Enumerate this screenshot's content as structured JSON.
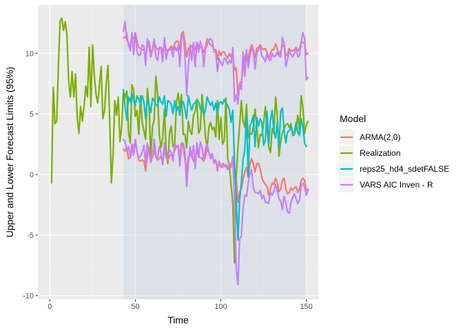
{
  "chart_data": {
    "type": "line",
    "title": "",
    "xlabel": "Time",
    "ylabel": "Upper and Lower Forecast Limits (95%)",
    "xlim": [
      -7,
      157
    ],
    "ylim": [
      -10.3,
      14.0
    ],
    "xticks": [
      0,
      50,
      100,
      150
    ],
    "yticks": [
      -10,
      -5,
      0,
      5,
      10
    ],
    "grid": true,
    "panel_background": "#ebebeb",
    "forecast_region": {
      "x_start": 43,
      "x_end": 150,
      "color": "#bfd2e1"
    },
    "legend": {
      "title": "Model",
      "position": "right",
      "entries": [
        {
          "label": "ARMA(2,0)",
          "color": "#f8766d"
        },
        {
          "label": "Realization",
          "color": "#7cae00"
        },
        {
          "label": "reps25_hd4_sdetFALSE",
          "color": "#00bfc4"
        },
        {
          "label": "VARS AIC Inven - R",
          "color": "#c77cff"
        }
      ]
    },
    "series": [
      {
        "name": "Realization",
        "color": "#7cae00",
        "x": [
          1,
          2,
          3,
          4,
          5,
          6,
          7,
          8,
          9,
          10,
          11,
          12,
          13,
          14,
          15,
          16,
          17,
          18,
          19,
          20,
          21,
          22,
          23,
          24,
          25,
          26,
          27,
          28,
          29,
          30,
          31,
          32,
          33,
          34,
          35,
          36,
          37,
          38,
          39,
          40,
          41,
          42,
          43,
          44,
          45,
          46,
          47,
          48,
          49,
          50,
          51,
          52,
          53,
          54,
          55,
          56,
          57,
          58,
          59,
          60,
          61,
          62,
          63,
          64,
          65,
          66,
          67,
          68,
          69,
          70,
          71,
          72,
          73,
          74,
          75,
          76,
          77,
          78,
          79,
          80,
          81,
          82,
          83,
          84,
          85,
          86,
          87,
          88,
          89,
          90,
          91,
          92,
          93,
          94,
          95,
          96,
          97,
          98,
          99,
          100,
          101,
          102,
          103,
          104,
          105,
          106,
          107,
          108,
          109,
          110,
          111,
          112,
          113,
          114,
          115,
          116,
          117,
          118,
          119,
          120,
          121,
          122,
          123,
          124,
          125,
          126,
          127,
          128,
          129,
          130,
          131,
          132,
          133,
          134,
          135,
          136,
          137,
          138,
          139,
          140,
          141,
          142,
          143,
          144,
          145,
          146,
          147,
          148,
          149,
          150,
          151
        ],
        "y": [
          -0.7,
          7.2,
          4.2,
          4.4,
          9.0,
          12.7,
          12.9,
          11.9,
          12.6,
          11.5,
          7.7,
          6.4,
          8.5,
          6.4,
          8.3,
          4.7,
          3.4,
          5.6,
          4.4,
          5.6,
          7.3,
          6.4,
          10.5,
          5.6,
          10.7,
          8.2,
          6.6,
          5.9,
          7.4,
          8.9,
          4.6,
          5.3,
          7.6,
          9.0,
          4.4,
          -0.7,
          1.7,
          6.1,
          4.9,
          6.4,
          2.7,
          3.9,
          6.9,
          6.3,
          6.9,
          3.5,
          2.6,
          7.4,
          7.0,
          4.8,
          5.3,
          3.3,
          6.5,
          4.3,
          3.6,
          2.9,
          7.1,
          5.8,
          1.5,
          3.9,
          4.5,
          8.1,
          6.6,
          3.3,
          2.2,
          3.0,
          5.4,
          2.0,
          0.9,
          3.4,
          4.0,
          2.3,
          2.5,
          5.8,
          6.7,
          5.5,
          6.6,
          3.3,
          3.3,
          2.2,
          4.4,
          3.6,
          3.3,
          4.9,
          5.2,
          6.1,
          3.4,
          3.7,
          6.6,
          5.1,
          3.1,
          2.2,
          3.9,
          4.3,
          3.7,
          3.9,
          3.1,
          6.1,
          2.9,
          4.7,
          2.5,
          2.8,
          6.3,
          1.3,
          0.7,
          -0.9,
          -2.4,
          -7.3,
          -0.2,
          2.2,
          4.1,
          6.1,
          4.4,
          3.9,
          5.8,
          3.0,
          3.4,
          3.3,
          3.9,
          5.4,
          4.0,
          2.2,
          3.3,
          3.2,
          4.2,
          5.6,
          3.9,
          2.3,
          1.8,
          3.8,
          3.4,
          6.4,
          4.9,
          1.5,
          2.7,
          3.5,
          3.8,
          4.1,
          4.2,
          3.9,
          4.2,
          3.2,
          3.3,
          3.8,
          4.9,
          3.6,
          6.5,
          5.5,
          3.4,
          4.1,
          4.4
        ]
      },
      {
        "name": "ARMA(2,0)",
        "color": "#f8766d",
        "x": [
          43,
          44,
          45,
          46,
          47,
          48,
          49,
          50,
          51,
          52,
          53,
          54,
          55,
          56,
          57,
          58,
          59,
          60,
          61,
          62,
          63,
          64,
          65,
          66,
          67,
          68,
          69,
          70,
          71,
          72,
          73,
          74,
          75,
          76,
          77,
          78,
          79,
          80,
          81,
          82,
          83,
          84,
          85,
          86,
          87,
          88,
          89,
          90,
          91,
          92,
          93,
          94,
          95,
          96,
          97,
          98,
          99,
          100,
          101,
          102,
          103,
          104,
          105,
          106,
          107,
          108,
          109,
          110,
          111,
          112,
          113,
          114,
          115,
          116,
          117,
          118,
          119,
          120,
          121,
          122,
          123,
          124,
          125,
          126,
          127,
          128,
          129,
          130,
          131,
          132,
          133,
          134,
          135,
          136,
          137,
          138,
          139,
          140,
          141,
          142,
          143,
          144,
          145,
          146,
          147,
          148,
          149,
          150,
          151
        ],
        "y_upper": [
          11.3,
          11.3,
          11.6,
          10.6,
          10.6,
          11.2,
          11.2,
          11.7,
          11.0,
          10.5,
          10.4,
          10.3,
          10.3,
          9.3,
          10.7,
          11.0,
          10.1,
          10.3,
          10.9,
          10.5,
          10.3,
          10.4,
          10.5,
          10.1,
          10.9,
          10.3,
          10.2,
          10.4,
          10.6,
          10.3,
          10.8,
          11.0,
          11.0,
          10.3,
          11.6,
          11.8,
          10.9,
          9.7,
          10.4,
          10.5,
          10.6,
          10.2,
          10.3,
          10.9,
          10.6,
          10.5,
          10.4,
          10.1,
          10.5,
          11.2,
          10.9,
          10.7,
          10.6,
          10.3,
          10.3,
          9.5,
          10.2,
          9.8,
          10.1,
          10.1,
          9.8,
          9.6,
          10.0,
          9.7,
          10.1,
          8.6,
          8.8,
          6.6,
          7.5,
          7.7,
          8.8,
          9.6,
          10.1,
          9.4,
          10.3,
          10.7,
          10.3,
          9.6,
          10.4,
          10.5,
          10.7,
          10.4,
          10.3,
          10.4,
          10.1,
          9.6,
          10.0,
          10.3,
          10.3,
          10.8,
          10.4,
          9.9,
          10.1,
          10.6,
          10.7,
          9.8,
          9.9,
          10.4,
          10.2,
          10.2,
          10.3,
          10.5,
          10.2,
          10.4,
          10.9,
          10.9,
          10.8,
          9.9,
          10.0
        ],
        "y_lower": [
          2.1,
          1.9,
          2.2,
          1.3,
          1.4,
          2.0,
          2.4,
          2.6,
          1.9,
          1.2,
          1.1,
          1.2,
          1.1,
          0.3,
          1.6,
          2.2,
          1.3,
          1.4,
          2.0,
          1.5,
          1.2,
          1.3,
          1.5,
          0.9,
          2.0,
          1.4,
          1.2,
          1.5,
          1.7,
          1.5,
          2.0,
          2.3,
          2.2,
          1.5,
          2.6,
          2.4,
          1.2,
          0.3,
          1.5,
          1.6,
          1.6,
          1.1,
          1.3,
          1.9,
          1.5,
          1.4,
          1.3,
          1.1,
          1.5,
          2.1,
          1.8,
          1.6,
          1.4,
          1.1,
          1.2,
          0.3,
          1.1,
          0.6,
          0.9,
          0.8,
          0.6,
          0.5,
          0.9,
          0.6,
          1.1,
          -0.3,
          -0.3,
          -2.3,
          -1.4,
          -1.2,
          -0.4,
          0.2,
          0.6,
          -0.2,
          0.8,
          1.3,
          0.9,
          0.2,
          0.9,
          0.9,
          0.5,
          -0.3,
          -0.6,
          -0.8,
          -1.0,
          -1.7,
          -1.2,
          -0.7,
          -0.8,
          -0.3,
          -0.7,
          -1.4,
          -1.2,
          -0.5,
          -0.3,
          -1.2,
          -1.6,
          -1.5,
          -1.1,
          -1.3,
          -1.1,
          -1.0,
          -1.5,
          -1.2,
          -0.5,
          -0.3,
          -0.5,
          -1.3,
          -1.2
        ]
      },
      {
        "name": "VARS AIC Inven - R",
        "color": "#c77cff",
        "x": [
          43,
          44,
          45,
          46,
          47,
          48,
          49,
          50,
          51,
          52,
          53,
          54,
          55,
          56,
          57,
          58,
          59,
          60,
          61,
          62,
          63,
          64,
          65,
          66,
          67,
          68,
          69,
          70,
          71,
          72,
          73,
          74,
          75,
          76,
          77,
          78,
          79,
          80,
          81,
          82,
          83,
          84,
          85,
          86,
          87,
          88,
          89,
          90,
          91,
          92,
          93,
          94,
          95,
          96,
          97,
          98,
          99,
          100,
          101,
          102,
          103,
          104,
          105,
          106,
          107,
          108,
          109,
          110,
          111,
          112,
          113,
          114,
          115,
          116,
          117,
          118,
          119,
          120,
          121,
          122,
          123,
          124,
          125,
          126,
          127,
          128,
          129,
          130,
          131,
          132,
          133,
          134,
          135,
          136,
          137,
          138,
          139,
          140,
          141,
          142,
          143,
          144,
          145,
          146,
          147,
          148,
          149,
          150,
          151
        ],
        "y_upper": [
          11.8,
          12.6,
          11.1,
          10.9,
          10.2,
          11.7,
          9.9,
          11.7,
          10.1,
          9.8,
          9.9,
          10.7,
          10.6,
          9.0,
          11.2,
          10.6,
          9.7,
          10.2,
          11.2,
          9.7,
          9.4,
          10.5,
          10.4,
          9.3,
          11.3,
          9.5,
          10.2,
          10.3,
          10.4,
          9.7,
          10.6,
          10.2,
          10.6,
          8.9,
          11.3,
          11.5,
          9.9,
          6.5,
          8.9,
          10.7,
          9.4,
          10.9,
          8.9,
          10.9,
          10.1,
          11.0,
          10.5,
          8.9,
          10.4,
          10.7,
          11.1,
          11.2,
          11.0,
          10.1,
          10.1,
          8.5,
          9.6,
          9.2,
          9.0,
          9.6,
          9.5,
          9.1,
          9.4,
          9.2,
          10.5,
          6.0,
          6.6,
          5.8,
          7.5,
          7.0,
          10.1,
          8.1,
          10.3,
          8.8,
          9.8,
          10.5,
          10.1,
          8.7,
          10.0,
          10.3,
          10.5,
          9.8,
          9.6,
          9.3,
          10.0,
          9.5,
          9.4,
          10.0,
          9.7,
          9.8,
          10.1,
          9.8,
          9.7,
          11.3,
          10.8,
          8.9,
          9.5,
          10.2,
          9.9,
          9.7,
          10.0,
          10.4,
          9.7,
          9.8,
          11.0,
          11.7,
          11.2,
          7.8,
          8.0
        ],
        "y_lower": [
          2.9,
          2.7,
          2.0,
          2.3,
          1.5,
          2.5,
          1.6,
          2.9,
          1.9,
          1.4,
          1.5,
          1.8,
          2.4,
          0.9,
          2.6,
          1.8,
          1.0,
          1.5,
          2.9,
          1.5,
          1.4,
          2.3,
          1.8,
          0.8,
          2.6,
          1.4,
          1.5,
          2.0,
          1.8,
          1.1,
          2.5,
          2.3,
          2.4,
          0.7,
          2.3,
          2.6,
          1.9,
          -1.0,
          0.9,
          2.3,
          1.4,
          2.4,
          0.5,
          2.6,
          1.4,
          2.7,
          2.2,
          1.2,
          2.1,
          2.5,
          1.8,
          1.3,
          1.7,
          0.9,
          1.2,
          0.5,
          1.0,
          0.7,
          0.6,
          0.8,
          0.8,
          0.4,
          0.7,
          0.7,
          1.5,
          -2.5,
          -7.8,
          -9.1,
          -5.3,
          -5.1,
          -2.8,
          -1.7,
          -1.8,
          -0.7,
          0.1,
          0.4,
          -1.1,
          -1.5,
          -1.5,
          -1.6,
          -1.3,
          -2.0,
          -1.7,
          -2.3,
          -2.3,
          -2.4,
          -1.5,
          -1.7,
          -1.4,
          -0.8,
          -1.3,
          -2.0,
          -2.2,
          -2.9,
          -1.8,
          -2.3,
          -3.1,
          -3.2,
          -2.3,
          -1.9,
          -1.6,
          -2.0,
          -2.4,
          -2.1,
          -1.0,
          -0.7,
          -1.1,
          -1.7,
          -1.3
        ]
      },
      {
        "name": "reps25_hd4_sdetFALSE",
        "color": "#00bfc4",
        "x": [
          43,
          44,
          45,
          46,
          47,
          48,
          49,
          50,
          51,
          52,
          53,
          54,
          55,
          56,
          57,
          58,
          59,
          60,
          61,
          62,
          63,
          64,
          65,
          66,
          67,
          68,
          69,
          70,
          71,
          72,
          73,
          74,
          75,
          76,
          77,
          78,
          79,
          80,
          81,
          82,
          83,
          84,
          85,
          86,
          87,
          88,
          89,
          90,
          91,
          92,
          93,
          94,
          95,
          96,
          97,
          98,
          99,
          100,
          101,
          102,
          103,
          104,
          105,
          106,
          107,
          108,
          109,
          110,
          111,
          112,
          113,
          114,
          115,
          116,
          117,
          118,
          119,
          120,
          121,
          122,
          123,
          124,
          125,
          126,
          127,
          128,
          129,
          130,
          131,
          132,
          133,
          134,
          135,
          136,
          137,
          138,
          139,
          140,
          141,
          142,
          143,
          144,
          145,
          146,
          147,
          148,
          149,
          150
        ],
        "y": [
          7.0,
          5.6,
          4.5,
          6.4,
          6.0,
          6.7,
          6.1,
          5.7,
          6.5,
          6.2,
          5.8,
          6.5,
          6.0,
          4.6,
          6.1,
          5.7,
          5.1,
          6.3,
          6.1,
          5.8,
          5.6,
          6.4,
          6.0,
          5.8,
          6.5,
          4.8,
          6.1,
          6.0,
          5.8,
          5.0,
          6.1,
          5.2,
          5.6,
          4.9,
          6.0,
          6.0,
          5.4,
          4.6,
          6.5,
          5.8,
          5.3,
          5.8,
          5.9,
          6.2,
          6.0,
          5.4,
          5.6,
          4.9,
          5.3,
          6.4,
          6.0,
          5.7,
          6.0,
          5.3,
          5.9,
          5.0,
          5.9,
          6.0,
          5.8,
          6.2,
          5.9,
          5.7,
          5.3,
          4.3,
          5.3,
          0.9,
          -2.0,
          -5.4,
          -2.1,
          -0.7,
          1.3,
          2.0,
          4.9,
          -0.2,
          4.0,
          4.3,
          4.9,
          2.3,
          4.7,
          4.0,
          4.6,
          4.3,
          2.4,
          2.8,
          5.2,
          2.5,
          4.5,
          5.3,
          3.6,
          3.0,
          4.3,
          2.2,
          5.2,
          5.5,
          3.6,
          2.6,
          3.5,
          3.6,
          3.9,
          3.5,
          3.4,
          4.3,
          3.5,
          3.2,
          4.6,
          3.9,
          2.6,
          2.3
        ]
      }
    ]
  }
}
